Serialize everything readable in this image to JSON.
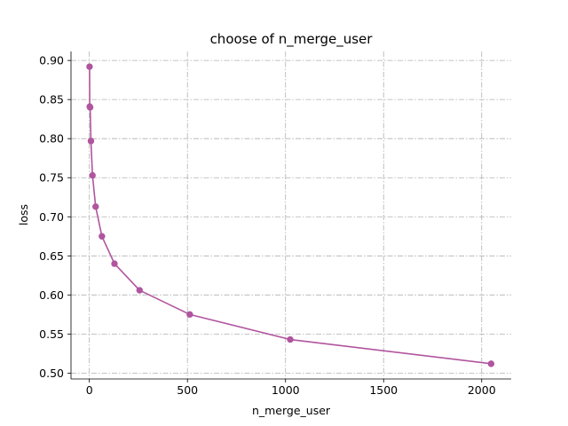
{
  "chart_data": {
    "type": "line",
    "title": "choose of n_merge_user",
    "xlabel": "n_merge_user",
    "ylabel": "loss",
    "xlim": [
      -93.6,
      2150.4
    ],
    "ylim": [
      0.4925,
      0.9115
    ],
    "xticks": [
      0,
      500,
      1000,
      1500,
      2000
    ],
    "xtick_labels": [
      "0",
      "500",
      "1000",
      "1500",
      "2000"
    ],
    "yticks": [
      0.5,
      0.55,
      0.6,
      0.65,
      0.7,
      0.75,
      0.8,
      0.85,
      0.9
    ],
    "ytick_labels": [
      "0.50",
      "0.55",
      "0.60",
      "0.65",
      "0.70",
      "0.75",
      "0.80",
      "0.85",
      "0.90"
    ],
    "grid": true,
    "color": "#b0559e",
    "series": [
      {
        "x": [
          1,
          2,
          4,
          8,
          16,
          32,
          64,
          128,
          256,
          512,
          1024,
          2048
        ],
        "y": [
          0.892,
          0.841,
          0.84,
          0.797,
          0.753,
          0.713,
          0.675,
          0.64,
          0.606,
          0.575,
          0.543,
          0.512
        ]
      }
    ]
  }
}
